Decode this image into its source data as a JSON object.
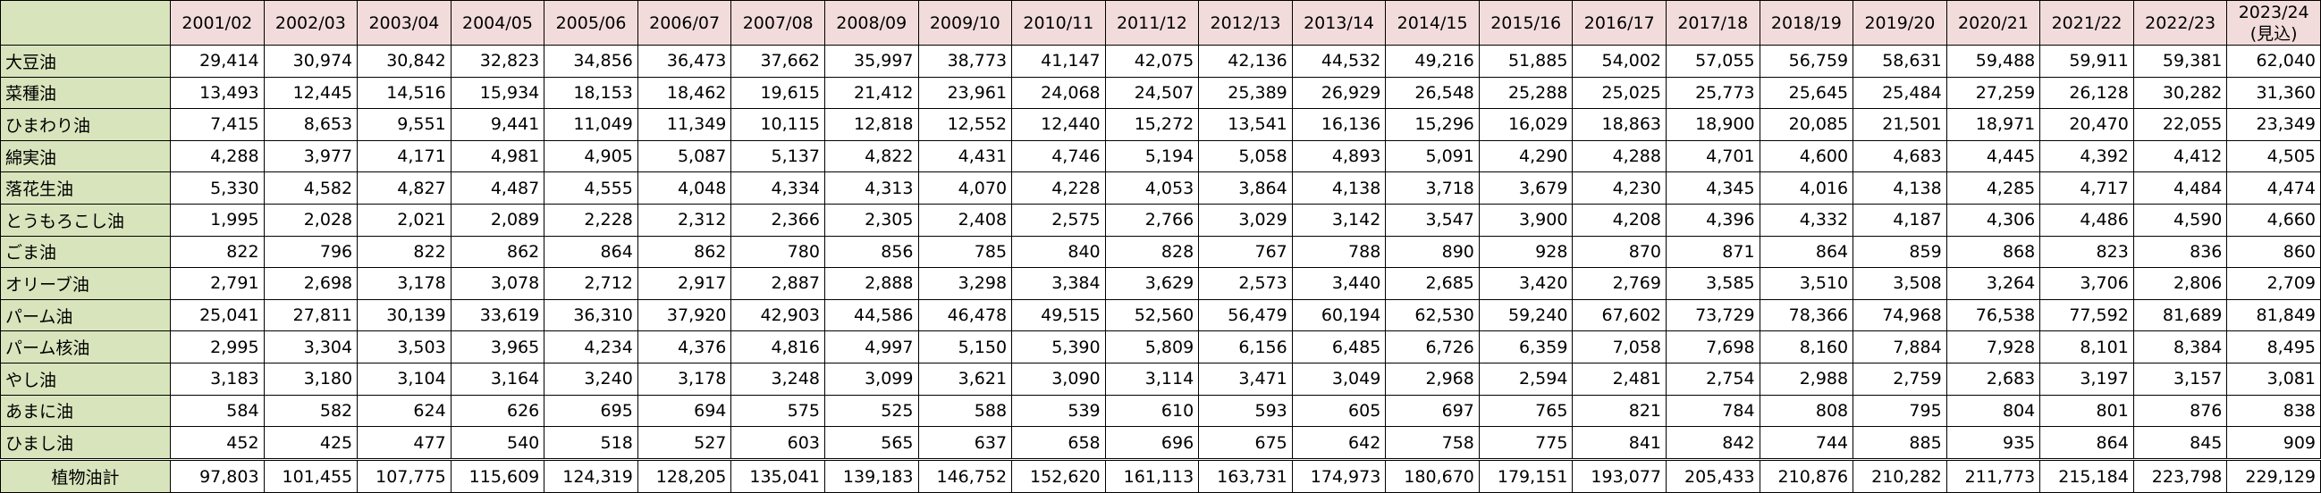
{
  "colors": {
    "header_bg": "#f2dcdb",
    "name_bg": "#d8e4bc"
  },
  "years": [
    "2001/02",
    "2002/03",
    "2003/04",
    "2004/05",
    "2005/06",
    "2006/07",
    "2007/08",
    "2008/09",
    "2009/10",
    "2010/11",
    "2011/12",
    "2012/13",
    "2013/14",
    "2014/15",
    "2015/16",
    "2016/17",
    "2017/18",
    "2018/19",
    "2019/20",
    "2020/21",
    "2021/22",
    "2022/23",
    "2023/24"
  ],
  "last_year_note": "(見込)",
  "rows": [
    {
      "name": "大豆油",
      "values": [
        "29,414",
        "30,974",
        "30,842",
        "32,823",
        "34,856",
        "36,473",
        "37,662",
        "35,997",
        "38,773",
        "41,147",
        "42,075",
        "42,136",
        "44,532",
        "49,216",
        "51,885",
        "54,002",
        "57,055",
        "56,759",
        "58,631",
        "59,488",
        "59,911",
        "59,381",
        "62,040"
      ]
    },
    {
      "name": "菜種油",
      "values": [
        "13,493",
        "12,445",
        "14,516",
        "15,934",
        "18,153",
        "18,462",
        "19,615",
        "21,412",
        "23,961",
        "24,068",
        "24,507",
        "25,389",
        "26,929",
        "26,548",
        "25,288",
        "25,025",
        "25,773",
        "25,645",
        "25,484",
        "27,259",
        "26,128",
        "30,282",
        "31,360"
      ]
    },
    {
      "name": "ひまわり油",
      "values": [
        "7,415",
        "8,653",
        "9,551",
        "9,441",
        "11,049",
        "11,349",
        "10,115",
        "12,818",
        "12,552",
        "12,440",
        "15,272",
        "13,541",
        "16,136",
        "15,296",
        "16,029",
        "18,863",
        "18,900",
        "20,085",
        "21,501",
        "18,971",
        "20,470",
        "22,055",
        "23,349"
      ]
    },
    {
      "name": "綿実油",
      "values": [
        "4,288",
        "3,977",
        "4,171",
        "4,981",
        "4,905",
        "5,087",
        "5,137",
        "4,822",
        "4,431",
        "4,746",
        "5,194",
        "5,058",
        "4,893",
        "5,091",
        "4,290",
        "4,288",
        "4,701",
        "4,600",
        "4,683",
        "4,445",
        "4,392",
        "4,412",
        "4,505"
      ]
    },
    {
      "name": "落花生油",
      "values": [
        "5,330",
        "4,582",
        "4,827",
        "4,487",
        "4,555",
        "4,048",
        "4,334",
        "4,313",
        "4,070",
        "4,228",
        "4,053",
        "3,864",
        "4,138",
        "3,718",
        "3,679",
        "4,230",
        "4,345",
        "4,016",
        "4,138",
        "4,285",
        "4,717",
        "4,484",
        "4,474"
      ]
    },
    {
      "name": "とうもろこし油",
      "values": [
        "1,995",
        "2,028",
        "2,021",
        "2,089",
        "2,228",
        "2,312",
        "2,366",
        "2,305",
        "2,408",
        "2,575",
        "2,766",
        "3,029",
        "3,142",
        "3,547",
        "3,900",
        "4,208",
        "4,396",
        "4,332",
        "4,187",
        "4,306",
        "4,486",
        "4,590",
        "4,660"
      ]
    },
    {
      "name": "ごま油",
      "values": [
        "822",
        "796",
        "822",
        "862",
        "864",
        "862",
        "780",
        "856",
        "785",
        "840",
        "828",
        "767",
        "788",
        "890",
        "928",
        "870",
        "871",
        "864",
        "859",
        "868",
        "823",
        "836",
        "860"
      ]
    },
    {
      "name": "オリーブ油",
      "values": [
        "2,791",
        "2,698",
        "3,178",
        "3,078",
        "2,712",
        "2,917",
        "2,887",
        "2,888",
        "3,298",
        "3,384",
        "3,629",
        "2,573",
        "3,440",
        "2,685",
        "3,420",
        "2,769",
        "3,585",
        "3,510",
        "3,508",
        "3,264",
        "3,706",
        "2,806",
        "2,709"
      ]
    },
    {
      "name": "パーム油",
      "values": [
        "25,041",
        "27,811",
        "30,139",
        "33,619",
        "36,310",
        "37,920",
        "42,903",
        "44,586",
        "46,478",
        "49,515",
        "52,560",
        "56,479",
        "60,194",
        "62,530",
        "59,240",
        "67,602",
        "73,729",
        "78,366",
        "74,968",
        "76,538",
        "77,592",
        "81,689",
        "81,849"
      ]
    },
    {
      "name": "パーム核油",
      "values": [
        "2,995",
        "3,304",
        "3,503",
        "3,965",
        "4,234",
        "4,376",
        "4,816",
        "4,997",
        "5,150",
        "5,390",
        "5,809",
        "6,156",
        "6,485",
        "6,726",
        "6,359",
        "7,058",
        "7,698",
        "8,160",
        "7,884",
        "7,928",
        "8,101",
        "8,384",
        "8,495"
      ]
    },
    {
      "name": "やし油",
      "values": [
        "3,183",
        "3,180",
        "3,104",
        "3,164",
        "3,240",
        "3,178",
        "3,248",
        "3,099",
        "3,621",
        "3,090",
        "3,114",
        "3,471",
        "3,049",
        "2,968",
        "2,594",
        "2,481",
        "2,754",
        "2,988",
        "2,759",
        "2,683",
        "3,197",
        "3,157",
        "3,081"
      ]
    },
    {
      "name": "あまに油",
      "values": [
        "584",
        "582",
        "624",
        "626",
        "695",
        "694",
        "575",
        "525",
        "588",
        "539",
        "610",
        "593",
        "605",
        "697",
        "765",
        "821",
        "784",
        "808",
        "795",
        "804",
        "801",
        "876",
        "838"
      ]
    },
    {
      "name": "ひまし油",
      "values": [
        "452",
        "425",
        "477",
        "540",
        "518",
        "527",
        "603",
        "565",
        "637",
        "658",
        "696",
        "675",
        "642",
        "758",
        "775",
        "841",
        "842",
        "744",
        "885",
        "935",
        "864",
        "845",
        "909"
      ]
    },
    {
      "name": "植物油計",
      "values": [
        "97,803",
        "101,455",
        "107,775",
        "115,609",
        "124,319",
        "128,205",
        "135,041",
        "139,183",
        "146,752",
        "152,620",
        "161,113",
        "163,731",
        "174,973",
        "180,670",
        "179,151",
        "193,077",
        "205,433",
        "210,876",
        "210,282",
        "211,773",
        "215,184",
        "223,798",
        "229,129"
      ]
    }
  ]
}
